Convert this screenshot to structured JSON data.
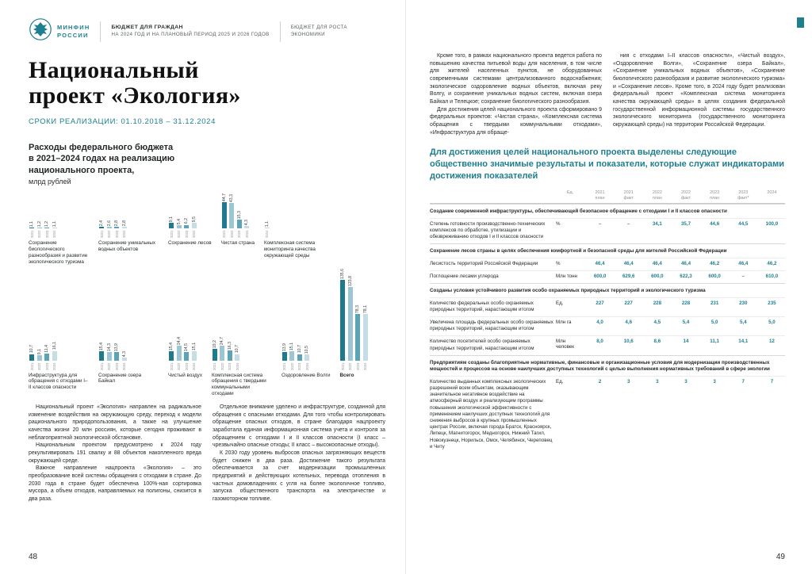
{
  "accent": "#1e7f8f",
  "header": {
    "logo_line1": "МИНФИН",
    "logo_line2": "РОССИИ",
    "doc_title_line1": "БЮДЖЕТ ДЛЯ ГРАЖДАН",
    "doc_title_line2": "НА 2024 ГОД И НА ПЛАНОВЫЙ ПЕРИОД 2025 И 2026 ГОДОВ",
    "section_line1": "БЮДЖЕТ ДЛЯ РОСТА",
    "section_line2": "ЭКОНОМИКИ"
  },
  "left_page": {
    "title": "Национальный\nпроект «Экология»",
    "dates": "СРОКИ РЕАЛИЗАЦИИ: 01.10.2018 – 31.12.2024",
    "chart_heading": "Расходы федерального бюджета\nв 2021–2024 годах на реализацию\nнационального проекта,",
    "chart_subheading": "млрд рублей",
    "paragraphs_col1": [
      "Национальный проект «Экология» направлен на радикальное изменение воздействия на окружающую среду, переход к модели рационального природопользования, а также на улучшение качества жизни 20 млн россиян, которые сегодня проживают в неблагоприятной экологической обстановке.",
      "Национальным проектом предусмотрено к 2024 году рекультивировать 191 свалку и 88 объектов накопленного вреда окружающей среде.",
      "Важное направление нацпроекта «Экология» – это преобразование всей системы обращения с отходами в стране. До 2030 года в стране будет обеспечена 100%-ная сортировка мусора, а объем отходов, направляемых на полигоны, снизится в два раза."
    ],
    "paragraphs_col2": [
      "Отдельное внимание уделено и инфраструктуре, созданной для обращения с опасными отходами. Для того чтобы контролировать обращение опасных отходов, в стране благодаря нацпроекту заработала единая информационная система учета и контроля за обращением с отходами I и II классов опасности (I класс – чрезвычайно опасные отходы; II класс – высокоопасные отходы).",
      "К 2030 году уровень выбросов опасных загрязняющих веществ будет снижен в два раза. Достижение такого результата обеспечивается за счет модернизации промышленных предприятий и действующих котельных, перевода отопления в частных домовладениях с угля на более экологичное топливо, запуска общественного транспорта на электричестве и газомоторном топливе."
    ],
    "page_number": "48"
  },
  "right_page": {
    "paragraphs_col1": [
      "Кроме того, в рамках национального проекта ведется работа по повышению качества питьевой воды для населения, в том числе для жителей населенных пунктов, не оборудованных современными системами централизованного водоснабжения; экологическое оздоровление водных объектов, включая реку Волгу, и сохранение уникальных водных систем, включая озера Байкал и Телецкое; сохранение биологического разнообразия.",
      "Для достижения целей национального проекта сформировано 9 федеральных проектов: «Чистая страна», «Комплексная система обращения с твердыми коммунальными отходами», «Инфраструктура для обраще-"
    ],
    "paragraphs_col2": [
      "ния с отходами I–II классов опасности», «Чистый воздух», «Оздоровление Волги», «Сохранение озера Байкал», «Сохранение уникальных водных объектов», «Сохранение биологического разнообразия и развитие экологического туризма» и «Сохранение лесов». Кроме того, в 2024 году будет реализован федеральный проект «Комплексная система мониторинга качества окружающей среды» в целях создания федеральной государственной информационной системы государственного экологического мониторинга (государственного мониторинга окружающей среды) на территории Российской Федерации."
    ],
    "heading": "Для достижения целей национального проекта выделены следующие общественно значимые результаты и показатели, которые служат индикаторами достижения показателей",
    "page_number": "49"
  },
  "chart_data": {
    "type": "bar",
    "title": "Расходы федерального бюджета в 2021–2024 годах на реализацию национального проекта, млрд рублей",
    "ylabel": "млрд рублей",
    "years": [
      "2021",
      "2022",
      "2023",
      "2024"
    ],
    "bar_colors": [
      "#1e7a8c",
      "#9cc6d4",
      "#5ba3b5",
      "#c6dde6"
    ],
    "rows": [
      {
        "max": 44.7,
        "groups": [
          {
            "name": "Сохранение биологического разнообразия и развитие экологического туризма",
            "values": [
              1.1,
              1.2,
              1.2,
              1.1
            ]
          },
          {
            "name": "Сохранение уникальных водных объектов",
            "values": [
              2.4,
              2.6,
              2.8,
              2.8
            ]
          },
          {
            "name": "Сохранение лесов",
            "values": [
              9.1,
              5.4,
              6.2,
              9.5
            ]
          },
          {
            "name": "Чистая страна",
            "values": [
              44.7,
              43.3,
              15.3,
              4.3
            ]
          },
          {
            "name": "Комплексная система мониторинга качества окружающей среды",
            "values": [
              null,
              null,
              null,
              1.1
            ]
          }
        ]
      },
      {
        "max": 135.6,
        "groups": [
          {
            "name": "Инфраструктура для обращения с отходами I–II классов опасности",
            "values": [
              10.7,
              9.1,
              11.4,
              16.1
            ]
          },
          {
            "name": "Сохранение озера Байкал",
            "values": [
              15.4,
              14.3,
              13.9,
              4.3
            ]
          },
          {
            "name": "Чистый воздух",
            "values": [
              15.4,
              24.4,
              14.5,
              15.1
            ]
          },
          {
            "name": "Комплексная система обращения с твердыми коммунальными отходами",
            "values": [
              19.2,
              24.7,
              16.3,
              10.7
            ]
          },
          {
            "name": "Оздоровление Волги",
            "values": [
              13.9,
              15.1,
              10.7,
              10.5
            ]
          },
          {
            "name": "Всего",
            "values": [
              135.6,
              123.8,
              78.3,
              78.1
            ],
            "bold": true
          }
        ]
      }
    ]
  },
  "table": {
    "columns": [
      "Ед.",
      "2021\nплан",
      "2021\nфакт",
      "2022\nплан",
      "2022\nфакт",
      "2023\nплан",
      "2023\nфакт*",
      "2024"
    ],
    "sections": [
      {
        "header": "Создание современной инфраструктуры, обеспечивающей безопасное обращение с отходами I и II классов опасности",
        "rows": [
          {
            "label": "Степень готовности производственно-технических комплексов по обработке, утилизации и обезвреживанию отходов I и II классов опасности",
            "unit": "%",
            "values": [
              "–",
              "–",
              "34,1",
              "35,7",
              "44,6",
              "44,5",
              "100,0"
            ]
          }
        ]
      },
      {
        "header": "Сохранение лесов страны в целях обеспечения комфортной и безопасной среды для жителей Российской Федерации",
        "rows": [
          {
            "label": "Лесистость территорий Российской Федерации",
            "unit": "%",
            "values": [
              "46,4",
              "46,4",
              "46,4",
              "46,4",
              "46,2",
              "46,4",
              "46,2"
            ]
          },
          {
            "label": "Поглощение лесами углерода",
            "unit": "Млн тонн",
            "values": [
              "600,0",
              "629,6",
              "600,0",
              "622,3",
              "600,0",
              "–",
              "610,0"
            ]
          }
        ]
      },
      {
        "header": "Созданы условия устойчивого развития особо охраняемых природных территорий и экологического туризма",
        "rows": [
          {
            "label": "Количество федеральных особо охраняемых природных территорий, нарастающим итогом",
            "unit": "Ед.",
            "values": [
              "227",
              "227",
              "228",
              "228",
              "231",
              "230",
              "235"
            ]
          },
          {
            "label": "Увеличена площадь федеральных особо охраняемых природных территорий, нарастающим итогом",
            "unit": "Млн га",
            "values": [
              "4,0",
              "4,6",
              "4,5",
              "5,4",
              "5,0",
              "5,4",
              "5,0"
            ]
          },
          {
            "label": "Количество посетителей особо охраняемых природных территорий, нарастающим итогом",
            "unit": "Млн человек",
            "values": [
              "8,0",
              "10,6",
              "8,6",
              "14",
              "11,1",
              "14,1",
              "12"
            ]
          }
        ]
      },
      {
        "header": "Предприятиям созданы благоприятные нормативные, финансовые и организационные условия для модернизации производственных мощностей и процессов на основе наилучших доступных технологий с целью выполнения нормативных требований в сфере экологии",
        "rows": [
          {
            "label": "Количество выданных комплексных экологических разрешений всем объектам, оказывающим значительное негативное воздействие на атмосферный воздух и реализующим программы повышения экологической эффективности с применением наилучших доступных технологий для снижения выбросов в крупных промышленных центрах России, включая города Братск, Красноярск, Липецк, Магнитогорск, Медногорск, Нижний Тагил, Новокузнецк, Норильск, Омск, Челябинск, Череповец и Читу",
            "unit": "Ед.",
            "values": [
              "2",
              "3",
              "3",
              "3",
              "3",
              "7",
              "7"
            ]
          }
        ]
      }
    ]
  }
}
